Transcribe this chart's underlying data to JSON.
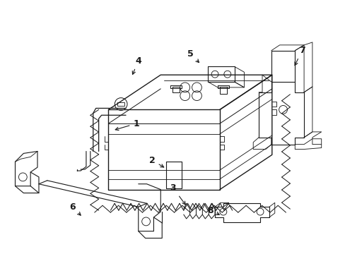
{
  "background_color": "#ffffff",
  "line_color": "#1a1a1a",
  "lw": 0.9,
  "fig_w": 4.89,
  "fig_h": 3.6,
  "dpi": 100
}
